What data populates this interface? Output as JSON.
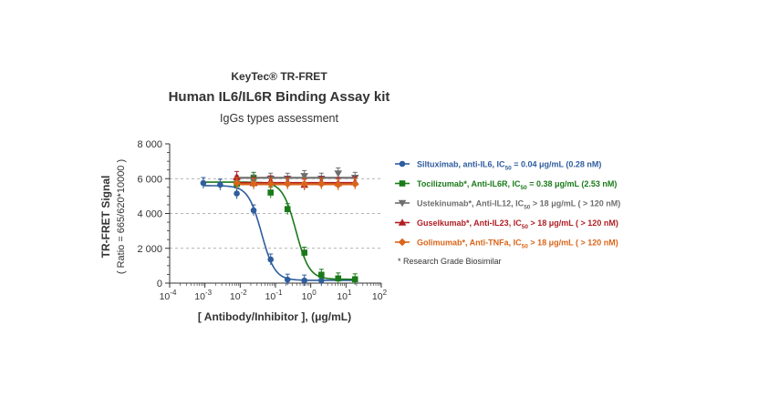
{
  "chart_data": {
    "type": "scatter",
    "kicker": "KeyTec® TR-FRET",
    "title": "Human IL6/IL6R Binding Assay kit",
    "subtitle": "IgGs types assessment",
    "xlabel": "[ Antibody/Inhibitor ],  (μg/mL)",
    "ylabel": "TR-FRET Signal",
    "ylabel2": "( Ratio = 665/620*10000 )",
    "x_scale": "log",
    "xlim": [
      0.0001,
      100
    ],
    "ylim": [
      0,
      8000
    ],
    "x_ticks": [
      0.0001,
      0.001,
      0.01,
      0.1,
      1,
      10,
      100
    ],
    "x_tick_labels": [
      {
        "base": "10",
        "exp": "-4"
      },
      {
        "base": "10",
        "exp": "-3"
      },
      {
        "base": "10",
        "exp": "-2"
      },
      {
        "base": "10",
        "exp": "-1"
      },
      {
        "base": "10",
        "exp": "0"
      },
      {
        "base": "10",
        "exp": "1"
      },
      {
        "base": "10",
        "exp": "2"
      }
    ],
    "y_ticks": [
      0,
      2000,
      4000,
      6000,
      8000
    ],
    "y_tick_labels": [
      "0",
      "2 000",
      "4 000",
      "6 000",
      "8 000"
    ],
    "grid": "horizontal dashed at 2000, 4000, 6000",
    "legend_position": "right",
    "series": [
      {
        "legend_prefix": "Siltuximab, anti-IL6, IC",
        "legend_sub": "50",
        "legend_suffix": " = 0.04 μg/mL (0.28 nM)",
        "color": "#2f5d9e",
        "marker": "circle",
        "points": [
          {
            "x": 0.0009,
            "y": 5750
          },
          {
            "x": 0.0027,
            "y": 5650
          },
          {
            "x": 0.008,
            "y": 5150
          },
          {
            "x": 0.024,
            "y": 4180
          },
          {
            "x": 0.073,
            "y": 1360
          },
          {
            "x": 0.22,
            "y": 200
          },
          {
            "x": 0.66,
            "y": 150
          },
          {
            "x": 2,
            "y": 160
          }
        ],
        "fit": {
          "top": 5600,
          "bottom": 160,
          "ec50": 0.04,
          "hill": 2.3
        }
      },
      {
        "legend_prefix": "Tocilizumab*, Anti-IL6R, IC",
        "legend_sub": "50",
        "legend_suffix": " = 0.38 μg/mL (2.53 nM)",
        "color": "#1a7a1a",
        "marker": "square",
        "points": [
          {
            "x": 0.008,
            "y": 5700
          },
          {
            "x": 0.024,
            "y": 6050
          },
          {
            "x": 0.073,
            "y": 5200
          },
          {
            "x": 0.22,
            "y": 4250
          },
          {
            "x": 0.66,
            "y": 1750
          },
          {
            "x": 2,
            "y": 480
          },
          {
            "x": 6,
            "y": 270
          },
          {
            "x": 18,
            "y": 220
          }
        ],
        "fit": {
          "top": 5800,
          "bottom": 220,
          "ec50": 0.38,
          "hill": 2.3
        }
      },
      {
        "legend_prefix": "Ustekinumab*, Anti-IL12, IC",
        "legend_sub": "50",
        "legend_suffix": " > 18 μg/mL ( > 120 nM)",
        "color": "#6e6e6e",
        "marker": "triangle-down",
        "points": [
          {
            "x": 0.008,
            "y": 5850
          },
          {
            "x": 0.024,
            "y": 5900
          },
          {
            "x": 0.073,
            "y": 6000
          },
          {
            "x": 0.22,
            "y": 6000
          },
          {
            "x": 0.66,
            "y": 6150
          },
          {
            "x": 2,
            "y": 6000
          },
          {
            "x": 6,
            "y": 6300
          },
          {
            "x": 18,
            "y": 6050
          }
        ],
        "fit": {
          "flat": 6050
        }
      },
      {
        "legend_prefix": "Guselkumab*, Anti-IL23, IC",
        "legend_sub": "50",
        "legend_suffix": " > 18 μg/mL ( > 120 nM)",
        "color": "#b01e23",
        "marker": "triangle-up",
        "points": [
          {
            "x": 0.008,
            "y": 6100
          },
          {
            "x": 0.024,
            "y": 5750
          },
          {
            "x": 0.073,
            "y": 5850
          },
          {
            "x": 0.22,
            "y": 5800
          },
          {
            "x": 0.66,
            "y": 5650
          },
          {
            "x": 2,
            "y": 5800
          },
          {
            "x": 6,
            "y": 5750
          },
          {
            "x": 18,
            "y": 5800
          }
        ],
        "fit": {
          "flat": 5750
        }
      },
      {
        "legend_prefix": "Golimumab*, Anti-TNFa, IC",
        "legend_sub": "50",
        "legend_suffix": " > 18 μg/mL ( > 120 nM)",
        "color": "#d9651a",
        "marker": "diamond",
        "points": [
          {
            "x": 0.008,
            "y": 5750
          },
          {
            "x": 0.024,
            "y": 5700
          },
          {
            "x": 0.073,
            "y": 5700
          },
          {
            "x": 0.22,
            "y": 5700
          },
          {
            "x": 0.66,
            "y": 5700
          },
          {
            "x": 2,
            "y": 5700
          },
          {
            "x": 6,
            "y": 5650
          },
          {
            "x": 18,
            "y": 5700
          }
        ],
        "fit": {
          "flat": 5680
        }
      }
    ],
    "footnote": "* Research Grade Biosimilar"
  }
}
